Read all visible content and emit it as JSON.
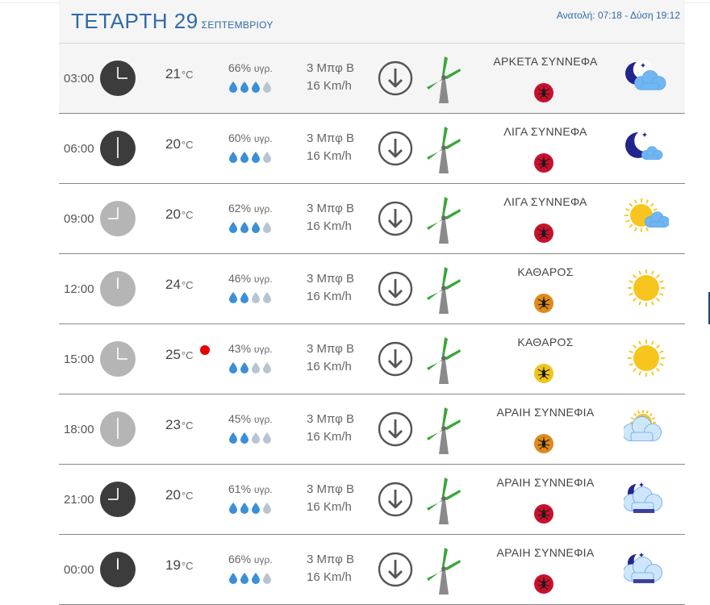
{
  "header": {
    "day": "ΤΕΤΑΡΤΗ 29",
    "month": "ΣΕΠΤΕΜΒΡΙΟΥ",
    "sun_times": "Ανατολή: 07:18 - Δύση 19:12"
  },
  "colors": {
    "accent": "#2f6aa6",
    "clock_night": "#3c3c3c",
    "clock_day": "#b5b5b5",
    "drop_full": "#3b8fd6",
    "drop_empty": "#b8c5d0",
    "mosquito_red": "#c8102e",
    "mosquito_orange": "#e08a18",
    "mosquito_yellow": "#f0c419",
    "turbine_green": "#3aa63a",
    "alert_dot": "#e60000"
  },
  "rows": [
    {
      "time": "03:00",
      "temp": "21",
      "unit": "°C",
      "humidity": "66%",
      "hum_label": "υγρ.",
      "drops_full": 3,
      "wind_bft": "3 Μπφ Β",
      "wind_kmh": "16 Km/h",
      "condition": "ΑΡΚΕΤΑ ΣΥΝΝΕΦΑ",
      "mosquito_level": "red",
      "weather_icon": "night-cloudy-icon",
      "clock": "night",
      "hour": 3,
      "alert": false
    },
    {
      "time": "06:00",
      "temp": "20",
      "unit": "°C",
      "humidity": "60%",
      "hum_label": "υγρ.",
      "drops_full": 3,
      "wind_bft": "3 Μπφ Β",
      "wind_kmh": "16 Km/h",
      "condition": "ΛΙΓΑ ΣΥΝΝΕΦΑ",
      "mosquito_level": "red",
      "weather_icon": "night-few-clouds-icon",
      "clock": "night",
      "hour": 6,
      "alert": false
    },
    {
      "time": "09:00",
      "temp": "20",
      "unit": "°C",
      "humidity": "62%",
      "hum_label": "υγρ.",
      "drops_full": 3,
      "wind_bft": "3 Μπφ Β",
      "wind_kmh": "16 Km/h",
      "condition": "ΛΙΓΑ ΣΥΝΝΕΦΑ",
      "mosquito_level": "red",
      "weather_icon": "sun-few-clouds-icon",
      "clock": "day",
      "hour": 9,
      "alert": false
    },
    {
      "time": "12:00",
      "temp": "24",
      "unit": "°C",
      "humidity": "46%",
      "hum_label": "υγρ.",
      "drops_full": 2,
      "wind_bft": "3 Μπφ Β",
      "wind_kmh": "16 Km/h",
      "condition": "ΚΑΘΑΡΟΣ",
      "mosquito_level": "orange",
      "weather_icon": "sun-icon",
      "clock": "day",
      "hour": 12,
      "alert": false
    },
    {
      "time": "15:00",
      "temp": "25",
      "unit": "°C",
      "humidity": "43%",
      "hum_label": "υγρ.",
      "drops_full": 2,
      "wind_bft": "3 Μπφ Β",
      "wind_kmh": "16 Km/h",
      "condition": "ΚΑΘΑΡΟΣ",
      "mosquito_level": "yellow",
      "weather_icon": "sun-icon",
      "clock": "day",
      "hour": 3,
      "alert": true
    },
    {
      "time": "18:00",
      "temp": "23",
      "unit": "°C",
      "humidity": "45%",
      "hum_label": "υγρ.",
      "drops_full": 2,
      "wind_bft": "3 Μπφ Β",
      "wind_kmh": "16 Km/h",
      "condition": "ΑΡΑΙΗ ΣΥΝΝΕΦΙΑ",
      "mosquito_level": "orange",
      "weather_icon": "sun-scattered-clouds-icon",
      "clock": "day",
      "hour": 6,
      "alert": false
    },
    {
      "time": "21:00",
      "temp": "20",
      "unit": "°C",
      "humidity": "61%",
      "hum_label": "υγρ.",
      "drops_full": 3,
      "wind_bft": "3 Μπφ Β",
      "wind_kmh": "16 Km/h",
      "condition": "ΑΡΑΙΗ ΣΥΝΝΕΦΙΑ",
      "mosquito_level": "red",
      "weather_icon": "night-scattered-clouds-icon",
      "clock": "night",
      "hour": 9,
      "alert": false
    },
    {
      "time": "00:00",
      "temp": "19",
      "unit": "°C",
      "humidity": "66%",
      "hum_label": "υγρ.",
      "drops_full": 3,
      "wind_bft": "3 Μπφ Β",
      "wind_kmh": "16 Km/h",
      "condition": "ΑΡΑΙΗ ΣΥΝΝΕΦΙΑ",
      "mosquito_level": "red",
      "weather_icon": "night-scattered-clouds-icon",
      "clock": "night",
      "hour": 12,
      "alert": false
    }
  ]
}
